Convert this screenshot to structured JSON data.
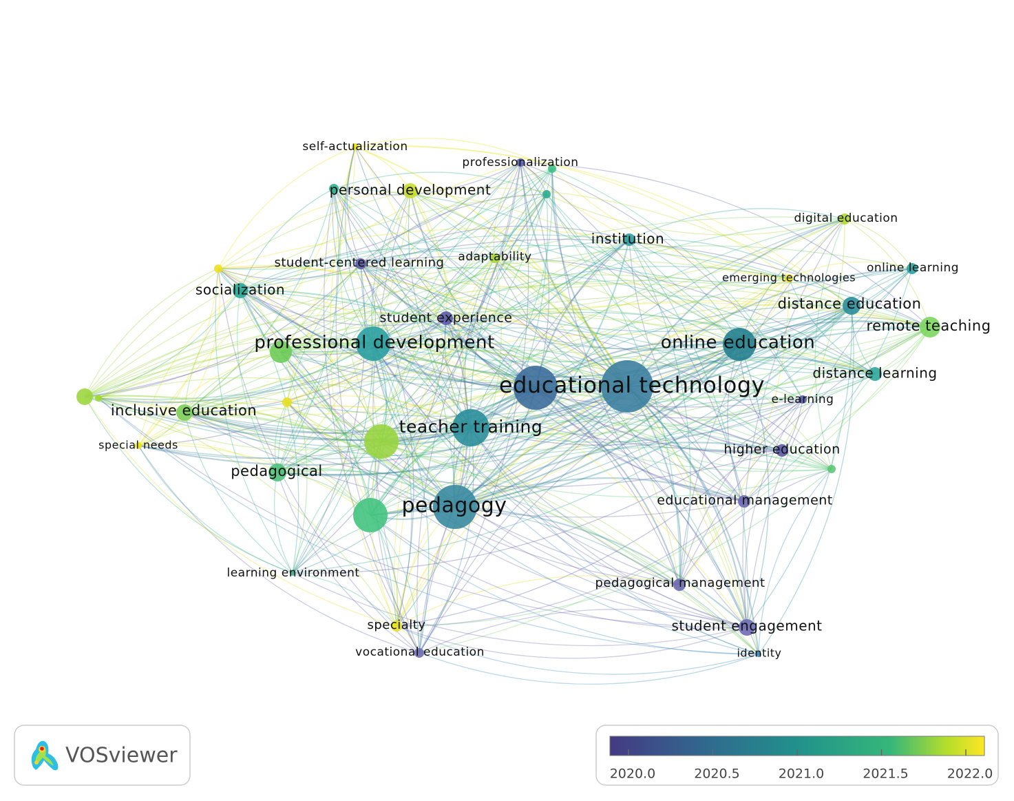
{
  "network": {
    "nodes": [
      {
        "label": "self-actualization"
      },
      {
        "label": "professionalization"
      },
      {
        "label": "personal development"
      },
      {
        "label": "digital education"
      },
      {
        "label": "institution"
      },
      {
        "label": "student-centered learning"
      },
      {
        "label": "adaptability"
      },
      {
        "label": "online learning"
      },
      {
        "label": "emerging technologies"
      },
      {
        "label": "socialization"
      },
      {
        "label": "distance education"
      },
      {
        "label": "remote teaching"
      },
      {
        "label": "student experience"
      },
      {
        "label": "professional development"
      },
      {
        "label": "online education"
      },
      {
        "label": "distance learning"
      },
      {
        "label": "educational technology"
      },
      {
        "label": "e-learning"
      },
      {
        "label": "inclusive education"
      },
      {
        "label": "teacher training"
      },
      {
        "label": "special needs"
      },
      {
        "label": "higher education"
      },
      {
        "label": "pedagogical"
      },
      {
        "label": "educational management"
      },
      {
        "label": "pedagogy"
      },
      {
        "label": "learning environment"
      },
      {
        "label": "pedagogical management"
      },
      {
        "label": "specialty"
      },
      {
        "label": "student engagement"
      },
      {
        "label": "vocational education"
      },
      {
        "label": "identity"
      }
    ]
  },
  "color_legend": {
    "range": [
      2019.89,
      2022.11
    ],
    "ticks": [
      {
        "value": 2020,
        "label": "2020.0"
      },
      {
        "value": 2020.5,
        "label": "2020.5"
      },
      {
        "value": 2021,
        "label": "2021.0"
      },
      {
        "value": 2021.5,
        "label": "2021.5"
      },
      {
        "value": 2022,
        "label": "2022.0"
      }
    ]
  },
  "logo": {
    "text": "VOSviewer"
  }
}
